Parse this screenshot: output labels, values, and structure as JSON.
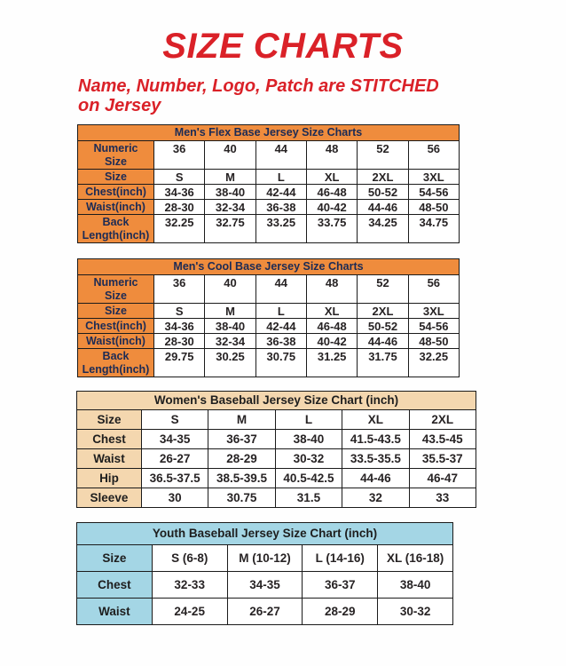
{
  "page": {
    "title": "SIZE CHARTS",
    "subtitle": "Name, Number, Logo, Patch are STITCHED\non Jersey"
  },
  "colors": {
    "accent_red": "#da2128",
    "orange_header": "#ef8c3d",
    "navy_text": "#1c2b55",
    "tan_header": "#f4d7af",
    "light_blue_header": "#a4d6e5",
    "border": "#1b1b1b",
    "value_text": "#272324"
  },
  "tables": [
    {
      "id": "mens-flex-base",
      "title": "Men's Flex Base Jersey Size Charts",
      "theme": "orange",
      "rows": [
        {
          "label": "Numeric\nSize",
          "values": [
            "36",
            "40",
            "44",
            "48",
            "52",
            "56"
          ]
        },
        {
          "label": "Size",
          "values": [
            "S",
            "M",
            "L",
            "XL",
            "2XL",
            "3XL"
          ]
        },
        {
          "label": "Chest(inch)",
          "values": [
            "34-36",
            "38-40",
            "42-44",
            "46-48",
            "50-52",
            "54-56"
          ]
        },
        {
          "label": "Waist(inch)",
          "values": [
            "28-30",
            "32-34",
            "36-38",
            "40-42",
            "44-46",
            "48-50"
          ]
        },
        {
          "label": "Back\nLength(inch)",
          "values": [
            "32.25",
            "32.75",
            "33.25",
            "33.75",
            "34.25",
            "34.75"
          ]
        }
      ]
    },
    {
      "id": "mens-cool-base",
      "title": "Men's Cool Base Jersey Size Charts",
      "theme": "orange",
      "rows": [
        {
          "label": "Numeric\nSize",
          "values": [
            "36",
            "40",
            "44",
            "48",
            "52",
            "56"
          ]
        },
        {
          "label": "Size",
          "values": [
            "S",
            "M",
            "L",
            "XL",
            "2XL",
            "3XL"
          ]
        },
        {
          "label": "Chest(inch)",
          "values": [
            "34-36",
            "38-40",
            "42-44",
            "46-48",
            "50-52",
            "54-56"
          ]
        },
        {
          "label": "Waist(inch)",
          "values": [
            "28-30",
            "32-34",
            "36-38",
            "40-42",
            "44-46",
            "48-50"
          ]
        },
        {
          "label": "Back\nLength(inch)",
          "values": [
            "29.75",
            "30.25",
            "30.75",
            "31.25",
            "31.75",
            "32.25"
          ]
        }
      ]
    },
    {
      "id": "womens-baseball",
      "title": "Women's Baseball Jersey Size Chart (inch)",
      "theme": "tan",
      "rows": [
        {
          "label": "Size",
          "values": [
            "S",
            "M",
            "L",
            "XL",
            "2XL"
          ]
        },
        {
          "label": "Chest",
          "values": [
            "34-35",
            "36-37",
            "38-40",
            "41.5-43.5",
            "43.5-45"
          ]
        },
        {
          "label": "Waist",
          "values": [
            "26-27",
            "28-29",
            "30-32",
            "33.5-35.5",
            "35.5-37"
          ]
        },
        {
          "label": "Hip",
          "values": [
            "36.5-37.5",
            "38.5-39.5",
            "40.5-42.5",
            "44-46",
            "46-47"
          ]
        },
        {
          "label": "Sleeve",
          "values": [
            "30",
            "30.75",
            "31.5",
            "32",
            "33"
          ]
        }
      ]
    },
    {
      "id": "youth-baseball",
      "title": "Youth Baseball Jersey Size Chart (inch)",
      "theme": "blue",
      "rows": [
        {
          "label": "Size",
          "values": [
            "S (6-8)",
            "M (10-12)",
            "L (14-16)",
            "XL (16-18)"
          ]
        },
        {
          "label": "Chest",
          "values": [
            "32-33",
            "34-35",
            "36-37",
            "38-40"
          ]
        },
        {
          "label": "Waist",
          "values": [
            "24-25",
            "26-27",
            "28-29",
            "30-32"
          ]
        }
      ]
    }
  ]
}
